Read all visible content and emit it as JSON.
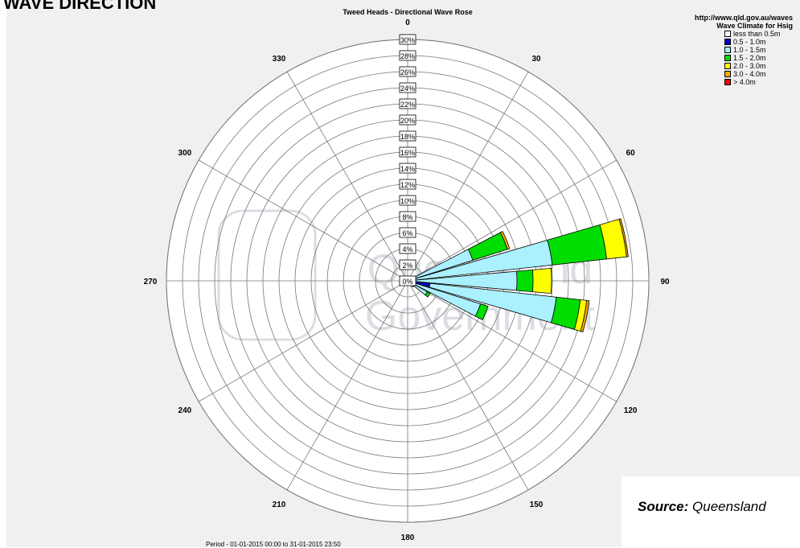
{
  "page": {
    "heading": "WAVE DIRECTION",
    "source_label": "Source:",
    "source_text": "Queensland"
  },
  "watermark": {
    "line1": "Queensland",
    "line2": "Government"
  },
  "chart_data": {
    "type": "wind_rose",
    "title": "Tweed Heads - Directional Wave Rose",
    "subtitle": "Period - 01-01-2015  00:00 to 31-01-2015  23:50",
    "url": "http://www.qld.gov.au/waves",
    "legend_title": "Wave Climate for Hsig",
    "legend_placement": "top-right",
    "radial_ticks": [
      "0%",
      "2%",
      "4%",
      "6%",
      "8%",
      "10%",
      "12%",
      "14%",
      "16%",
      "18%",
      "20%",
      "22%",
      "24%",
      "26%",
      "28%",
      "30%"
    ],
    "radial_max": 30,
    "direction_labels": [
      "0",
      "30",
      "60",
      "90",
      "120",
      "150",
      "180",
      "210",
      "240",
      "270",
      "300",
      "330"
    ],
    "classes": [
      {
        "name": "less than 0.5m",
        "color": "#ffffff"
      },
      {
        "name": "0.5 - 1.0m",
        "color": "#0000cc"
      },
      {
        "name": "1.0 - 1.5m",
        "color": "#aaf0ff"
      },
      {
        "name": "1.5 - 2.0m",
        "color": "#00dd00"
      },
      {
        "name": "2.0 - 3.0m",
        "color": "#ffff00"
      },
      {
        "name": "3.0 - 4.0m",
        "color": "#ffaa00"
      },
      {
        "name": "> 4.0m",
        "color": "#ff0000"
      }
    ],
    "bins": [
      {
        "direction": 67.5,
        "values": [
          0,
          0.5,
          8.0,
          4.5,
          0,
          0.3,
          0
        ]
      },
      {
        "direction": 78.75,
        "values": [
          0,
          0.6,
          17.5,
          6.8,
          2.5,
          0.2,
          0
        ]
      },
      {
        "direction": 90,
        "values": [
          0,
          0.6,
          13.0,
          2.0,
          2.3,
          0,
          0
        ]
      },
      {
        "direction": 101.25,
        "values": [
          0,
          2.8,
          15.8,
          3.0,
          0.8,
          0.3,
          0
        ]
      },
      {
        "direction": 112.5,
        "values": [
          0,
          0.5,
          9.0,
          1.0,
          0,
          0,
          0
        ]
      },
      {
        "direction": 123.75,
        "values": [
          0,
          0.3,
          2.5,
          0.4,
          0,
          0,
          0
        ]
      },
      {
        "direction": 135,
        "values": [
          0,
          0.5,
          0.5,
          0,
          0,
          0,
          0
        ]
      }
    ],
    "grid": true
  }
}
